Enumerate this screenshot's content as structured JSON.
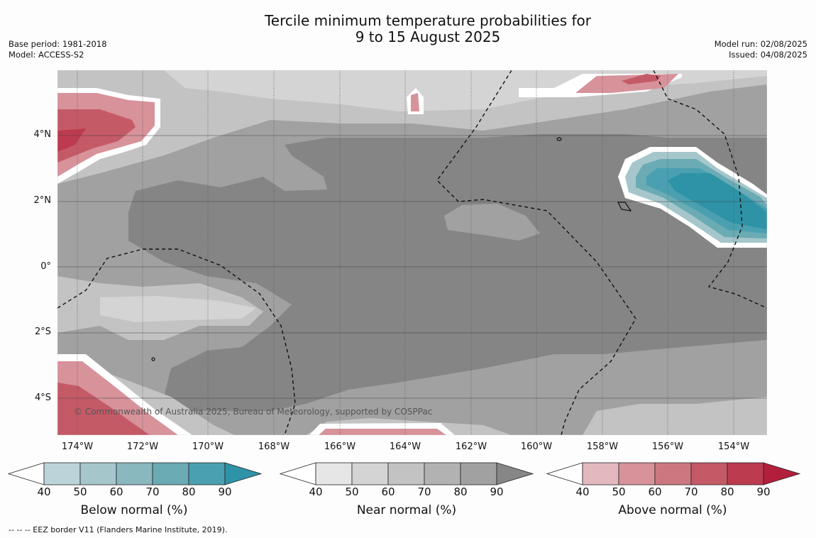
{
  "title_line1": "Tercile minimum temperature probabilities for",
  "title_line2": "9 to 15 August 2025",
  "base_period": "Base period: 1981-2018",
  "model": "Model: ACCESS-S2",
  "model_run": "Model run: 02/08/2025",
  "issued": "Issued: 04/08/2025",
  "lat_labels": [
    "4°N",
    "2°N",
    "0°",
    "2°S",
    "4°S"
  ],
  "lon_labels": [
    "174°W",
    "172°W",
    "170°W",
    "168°W",
    "166°W",
    "164°W",
    "162°W",
    "160°W",
    "158°W",
    "156°W",
    "154°W"
  ],
  "copyright": "© Commonwealth of Australia 2025, Bureau of Meteorology, supported by COSPPac",
  "colorbars": [
    {
      "label": "Below normal (%)",
      "ticks": [
        "40",
        "50",
        "60",
        "70",
        "80",
        "90"
      ],
      "colors": [
        "#bcd3d9",
        "#a5c6cb",
        "#89b8be",
        "#6aabb4",
        "#4aa0b0",
        "#2e93a6"
      ]
    },
    {
      "label": "Near normal (%)",
      "ticks": [
        "40",
        "50",
        "60",
        "70",
        "80",
        "90"
      ],
      "colors": [
        "#e6e6e6",
        "#d4d4d4",
        "#c3c3c3",
        "#b2b2b2",
        "#a1a1a1",
        "#868686"
      ]
    },
    {
      "label": "Above normal (%)",
      "ticks": [
        "40",
        "50",
        "60",
        "70",
        "80",
        "90"
      ],
      "colors": [
        "#e3b8bf",
        "#d7929a",
        "#cd7880",
        "#c55a67",
        "#bd3b4f",
        "#b31e3c"
      ]
    }
  ],
  "footnote": "-- -- -- EEZ border V11 (Flanders Marine Institute, 2019).",
  "map_colors": {
    "base": "#a1a1a1",
    "dark": "#858585",
    "light": "#c3c3c3",
    "lighter": "#d4d4d4",
    "below": "#2e93a6",
    "above": "#c55a67"
  }
}
